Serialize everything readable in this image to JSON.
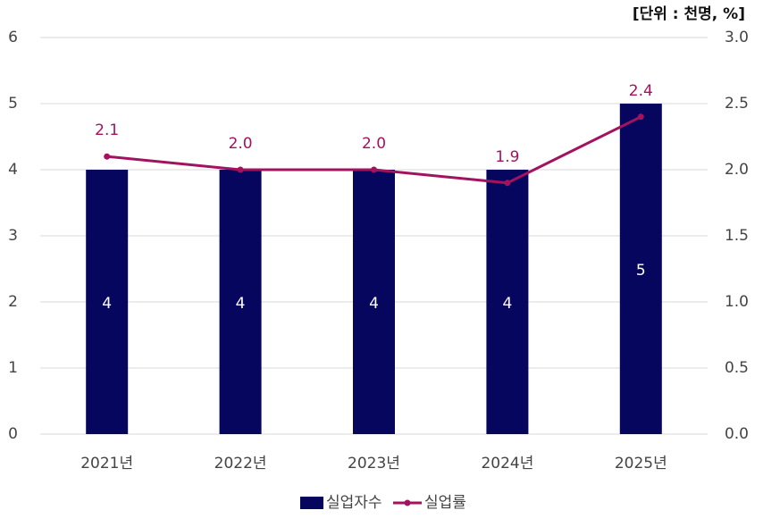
{
  "chart_data": {
    "type": "bar",
    "unit": "[단위 : 천명, %]",
    "categories": [
      "2021년",
      "2022년",
      "2023년",
      "2024년",
      "2025년"
    ],
    "series": [
      {
        "name": "실업자수",
        "type": "bar",
        "color": "#06065e",
        "values": [
          4,
          4,
          4,
          4,
          5
        ]
      },
      {
        "name": "실업률",
        "type": "line",
        "axis": "y2",
        "color": "#a3125e",
        "values": [
          2.1,
          2.0,
          2.0,
          1.9,
          2.4
        ],
        "value_labels": [
          "2.1",
          "2.0",
          "2.0",
          "1.9",
          "2.4"
        ]
      }
    ],
    "ylim": [
      0,
      6
    ],
    "yticks": [
      0,
      1,
      2,
      3,
      4,
      5,
      6
    ],
    "y2lim": [
      0,
      3
    ],
    "y2ticks": [
      {
        "value": 0,
        "label": "0.0"
      },
      0.5,
      {
        "value": 1,
        "label": "1.0"
      },
      1.5,
      {
        "value": 2,
        "label": "2.0"
      },
      2.5,
      {
        "value": 3,
        "label": "3.0"
      }
    ],
    "grid": true
  }
}
